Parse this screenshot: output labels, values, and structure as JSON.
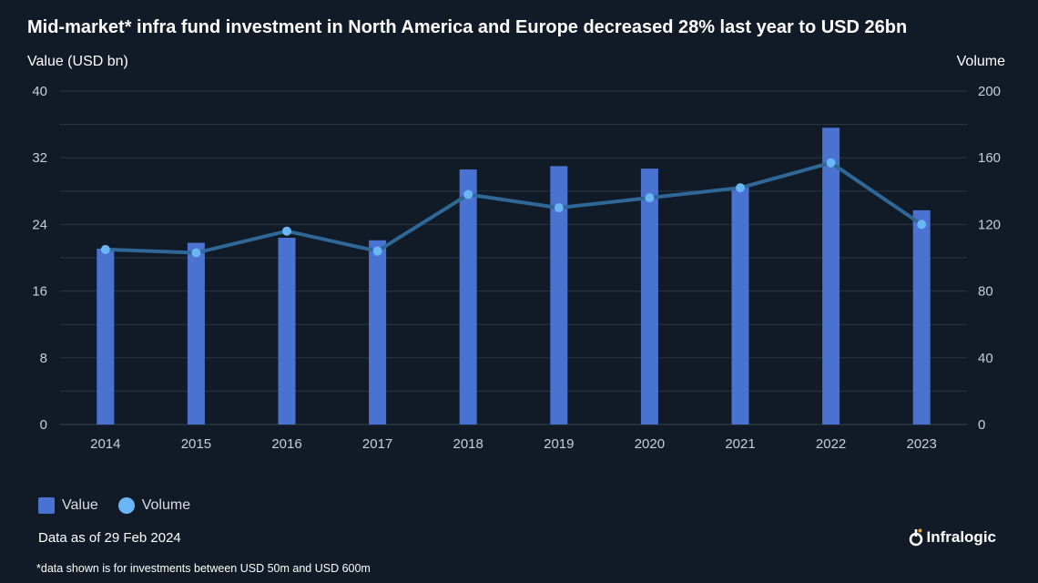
{
  "title": "Mid-market* infra fund investment in North America and Europe decreased 28% last year to USD 26bn",
  "left_axis_title": "Value (USD bn)",
  "right_axis_title": "Volume",
  "legend": {
    "value_label": "Value",
    "volume_label": "Volume"
  },
  "as_of": "Data as of 29 Feb 2024",
  "footnote": "*data shown is for investments between USD 50m and USD 600m",
  "logo_text": "Infralogic",
  "colors": {
    "background": "#111b27",
    "bar": "#4a72d1",
    "line": "#2f6796",
    "marker": "#6ab6f5",
    "grid": "#2b3644"
  },
  "chart_data": {
    "type": "bar",
    "categories": [
      "2014",
      "2015",
      "2016",
      "2017",
      "2018",
      "2019",
      "2020",
      "2021",
      "2022",
      "2023"
    ],
    "series": [
      {
        "name": "Value",
        "type": "bar",
        "axis": "left",
        "values": [
          21.1,
          21.8,
          22.4,
          22.1,
          30.6,
          31.0,
          30.7,
          28.5,
          35.6,
          25.7
        ]
      },
      {
        "name": "Volume",
        "type": "line",
        "axis": "right",
        "values": [
          105,
          103,
          116,
          104,
          138,
          130,
          136,
          142,
          157,
          120
        ]
      }
    ],
    "y_left": {
      "range": [
        0,
        40
      ],
      "ticks": [
        "0",
        "8",
        "16",
        "24",
        "32",
        "40"
      ]
    },
    "y_right": {
      "range": [
        0,
        200
      ],
      "ticks": [
        "0",
        "40",
        "80",
        "120",
        "160",
        "200"
      ]
    },
    "grid": true,
    "legend_position": "bottom-left"
  }
}
